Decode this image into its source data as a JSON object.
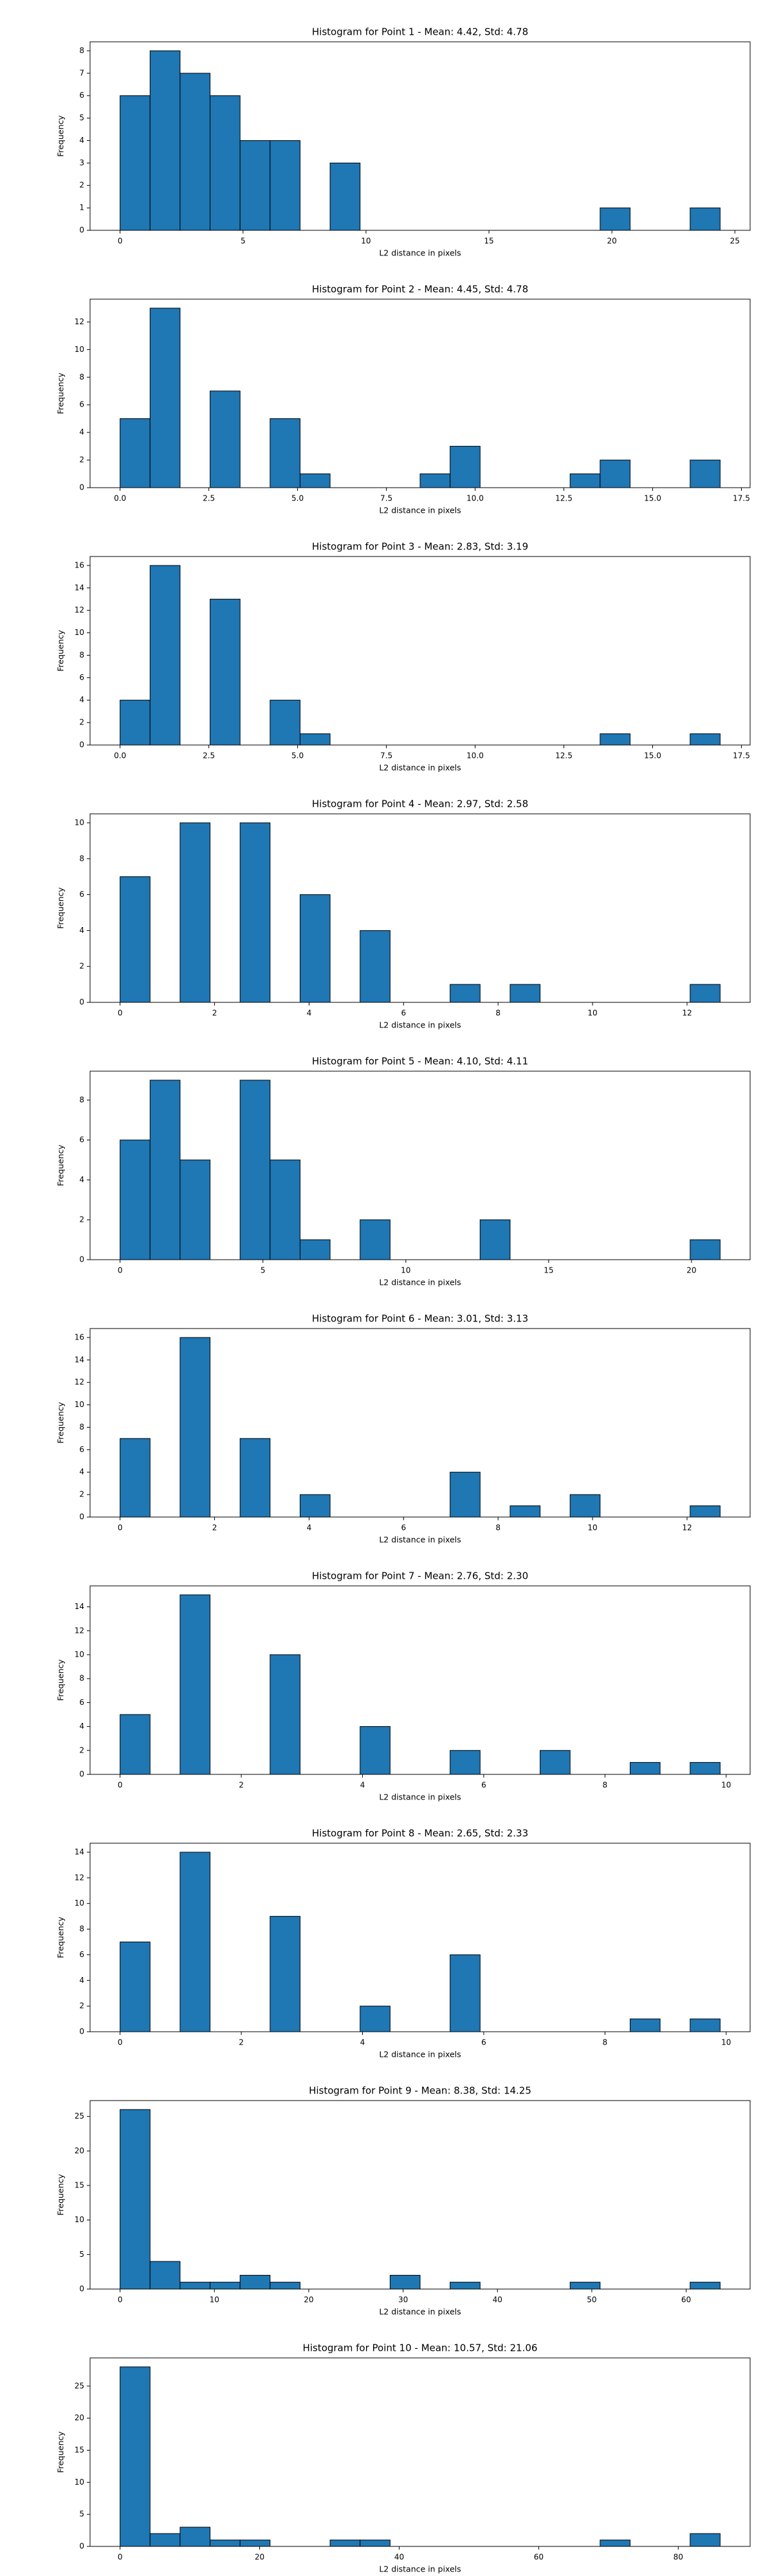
{
  "chart_data": [
    {
      "type": "histogram",
      "title": "Histogram for Point 1 - Mean: 4.42, Std: 4.78",
      "x_label": "L2 distance in pixels",
      "y_label": "Frequency",
      "color": "#1f77b4",
      "bins": [
        0,
        1.22,
        2.44,
        3.66,
        4.88,
        6.1,
        7.32,
        8.54,
        9.76,
        10.98,
        12.2,
        13.42,
        14.64,
        15.86,
        17.08,
        18.3,
        19.52,
        20.74,
        21.96,
        23.18,
        24.4
      ],
      "values": [
        6,
        8,
        7,
        6,
        4,
        4,
        0,
        3,
        0,
        0,
        0,
        0,
        0,
        0,
        0,
        0,
        1,
        0,
        0,
        1
      ],
      "xlim": [
        -1.22,
        25.62
      ],
      "xticks": [
        0,
        5,
        10,
        15,
        20,
        25
      ],
      "ylim": [
        0,
        8.4
      ],
      "yticks": [
        0,
        1,
        2,
        3,
        4,
        5,
        6,
        7,
        8
      ]
    },
    {
      "type": "histogram",
      "title": "Histogram for Point 2 - Mean: 4.45, Std: 4.78",
      "x_label": "L2 distance in pixels",
      "y_label": "Frequency",
      "color": "#1f77b4",
      "bins": [
        0,
        0.845,
        1.69,
        2.535,
        3.38,
        4.225,
        5.07,
        5.915,
        6.76,
        7.605,
        8.45,
        9.295,
        10.14,
        10.985,
        11.83,
        12.675,
        13.52,
        14.365,
        15.21,
        16.055,
        16.9
      ],
      "values": [
        5,
        13,
        0,
        7,
        0,
        5,
        1,
        0,
        0,
        0,
        1,
        3,
        0,
        0,
        0,
        1,
        2,
        0,
        0,
        2
      ],
      "xlim": [
        -0.845,
        17.745
      ],
      "xticks": [
        {
          "value": 0,
          "label": "0.0"
        },
        {
          "value": 2.5,
          "label": "2.5"
        },
        {
          "value": 5,
          "label": "5.0"
        },
        {
          "value": 7.5,
          "label": "7.5"
        },
        {
          "value": 10,
          "label": "10.0"
        },
        {
          "value": 12.5,
          "label": "12.5"
        },
        {
          "value": 15,
          "label": "15.0"
        },
        {
          "value": 17.5,
          "label": "17.5"
        }
      ],
      "ylim": [
        0,
        13.65
      ],
      "yticks": [
        0,
        2,
        4,
        6,
        8,
        10,
        12
      ]
    },
    {
      "type": "histogram",
      "title": "Histogram for Point 3 - Mean: 2.83, Std: 3.19",
      "x_label": "L2 distance in pixels",
      "y_label": "Frequency",
      "color": "#1f77b4",
      "bins": [
        0,
        0.845,
        1.69,
        2.535,
        3.38,
        4.225,
        5.07,
        5.915,
        6.76,
        7.605,
        8.45,
        9.295,
        10.14,
        10.985,
        11.83,
        12.675,
        13.52,
        14.365,
        15.21,
        16.055,
        16.9
      ],
      "values": [
        4,
        16,
        0,
        13,
        0,
        4,
        1,
        0,
        0,
        0,
        0,
        0,
        0,
        0,
        0,
        0,
        1,
        0,
        0,
        1
      ],
      "xlim": [
        -0.845,
        17.745
      ],
      "xticks": [
        {
          "value": 0,
          "label": "0.0"
        },
        {
          "value": 2.5,
          "label": "2.5"
        },
        {
          "value": 5,
          "label": "5.0"
        },
        {
          "value": 7.5,
          "label": "7.5"
        },
        {
          "value": 10,
          "label": "10.0"
        },
        {
          "value": 12.5,
          "label": "12.5"
        },
        {
          "value": 15,
          "label": "15.0"
        },
        {
          "value": 17.5,
          "label": "17.5"
        }
      ],
      "ylim": [
        0,
        16.8
      ],
      "yticks": [
        0,
        2,
        4,
        6,
        8,
        10,
        12,
        14,
        16
      ]
    },
    {
      "type": "histogram",
      "title": "Histogram for Point 4 - Mean: 2.97, Std: 2.58",
      "x_label": "L2 distance in pixels",
      "y_label": "Frequency",
      "color": "#1f77b4",
      "bins": [
        0,
        0.635,
        1.27,
        1.905,
        2.54,
        3.175,
        3.81,
        4.445,
        5.08,
        5.715,
        6.35,
        6.985,
        7.62,
        8.255,
        8.89,
        9.525,
        10.16,
        10.795,
        11.43,
        12.065,
        12.7
      ],
      "values": [
        7,
        0,
        10,
        0,
        10,
        0,
        6,
        0,
        4,
        0,
        0,
        1,
        0,
        1,
        0,
        0,
        0,
        0,
        0,
        1
      ],
      "xlim": [
        -0.635,
        13.335
      ],
      "xticks": [
        0,
        2,
        4,
        6,
        8,
        10,
        12
      ],
      "ylim": [
        0,
        10.5
      ],
      "yticks": [
        0,
        2,
        4,
        6,
        8,
        10
      ]
    },
    {
      "type": "histogram",
      "title": "Histogram for Point 5 - Mean: 4.10, Std: 4.11",
      "x_label": "L2 distance in pixels",
      "y_label": "Frequency",
      "color": "#1f77b4",
      "bins": [
        0,
        1.05,
        2.1,
        3.15,
        4.2,
        5.25,
        6.3,
        7.35,
        8.4,
        9.45,
        10.5,
        11.55,
        12.6,
        13.65,
        14.7,
        15.75,
        16.8,
        17.85,
        18.9,
        19.95,
        21
      ],
      "values": [
        6,
        9,
        5,
        0,
        9,
        5,
        1,
        0,
        2,
        0,
        0,
        0,
        2,
        0,
        0,
        0,
        0,
        0,
        0,
        1
      ],
      "xlim": [
        -1.05,
        22.05
      ],
      "xticks": [
        0,
        5,
        10,
        15,
        20
      ],
      "ylim": [
        0,
        9.45
      ],
      "yticks": [
        0,
        2,
        4,
        6,
        8
      ]
    },
    {
      "type": "histogram",
      "title": "Histogram for Point 6 - Mean: 3.01, Std: 3.13",
      "x_label": "L2 distance in pixels",
      "y_label": "Frequency",
      "color": "#1f77b4",
      "bins": [
        0,
        0.635,
        1.27,
        1.905,
        2.54,
        3.175,
        3.81,
        4.445,
        5.08,
        5.715,
        6.35,
        6.985,
        7.62,
        8.255,
        8.89,
        9.525,
        10.16,
        10.795,
        11.43,
        12.065,
        12.7
      ],
      "values": [
        7,
        0,
        16,
        0,
        7,
        0,
        2,
        0,
        0,
        0,
        0,
        4,
        0,
        1,
        0,
        2,
        0,
        0,
        0,
        1
      ],
      "xlim": [
        -0.635,
        13.335
      ],
      "xticks": [
        0,
        2,
        4,
        6,
        8,
        10,
        12
      ],
      "ylim": [
        0,
        16.8
      ],
      "yticks": [
        0,
        2,
        4,
        6,
        8,
        10,
        12,
        14,
        16
      ]
    },
    {
      "type": "histogram",
      "title": "Histogram for Point 7 - Mean: 2.76, Std: 2.30",
      "x_label": "L2 distance in pixels",
      "y_label": "Frequency",
      "color": "#1f77b4",
      "bins": [
        0,
        0.495,
        0.99,
        1.485,
        1.98,
        2.475,
        2.97,
        3.465,
        3.96,
        4.455,
        4.95,
        5.445,
        5.94,
        6.435,
        6.93,
        7.425,
        7.92,
        8.415,
        8.91,
        9.405,
        9.9
      ],
      "values": [
        5,
        0,
        15,
        0,
        0,
        10,
        0,
        0,
        4,
        0,
        0,
        2,
        0,
        0,
        2,
        0,
        0,
        1,
        0,
        1
      ],
      "xlim": [
        -0.495,
        10.395
      ],
      "xticks": [
        0,
        2,
        4,
        6,
        8,
        10
      ],
      "ylim": [
        0,
        15.75
      ],
      "yticks": [
        0,
        2,
        4,
        6,
        8,
        10,
        12,
        14
      ]
    },
    {
      "type": "histogram",
      "title": "Histogram for Point 8 - Mean: 2.65, Std: 2.33",
      "x_label": "L2 distance in pixels",
      "y_label": "Frequency",
      "color": "#1f77b4",
      "bins": [
        0,
        0.495,
        0.99,
        1.485,
        1.98,
        2.475,
        2.97,
        3.465,
        3.96,
        4.455,
        4.95,
        5.445,
        5.94,
        6.435,
        6.93,
        7.425,
        7.92,
        8.415,
        8.91,
        9.405,
        9.9
      ],
      "values": [
        7,
        0,
        14,
        0,
        0,
        9,
        0,
        0,
        2,
        0,
        0,
        6,
        0,
        0,
        0,
        0,
        0,
        1,
        0,
        1
      ],
      "xlim": [
        -0.495,
        10.395
      ],
      "xticks": [
        0,
        2,
        4,
        6,
        8,
        10
      ],
      "ylim": [
        0,
        14.7
      ],
      "yticks": [
        0,
        2,
        4,
        6,
        8,
        10,
        12,
        14
      ]
    },
    {
      "type": "histogram",
      "title": "Histogram for Point 9 - Mean: 8.38, Std: 14.25",
      "x_label": "L2 distance in pixels",
      "y_label": "Frequency",
      "color": "#1f77b4",
      "bins": [
        0,
        3.18,
        6.36,
        9.54,
        12.72,
        15.9,
        19.08,
        22.26,
        25.44,
        28.62,
        31.8,
        34.98,
        38.16,
        41.34,
        44.52,
        47.7,
        50.88,
        54.06,
        57.24,
        60.42,
        63.6
      ],
      "values": [
        26,
        4,
        1,
        1,
        2,
        1,
        0,
        0,
        0,
        2,
        0,
        1,
        0,
        0,
        0,
        1,
        0,
        0,
        0,
        1
      ],
      "xlim": [
        -3.18,
        66.78
      ],
      "xticks": [
        0,
        10,
        20,
        30,
        40,
        50,
        60
      ],
      "ylim": [
        0,
        27.3
      ],
      "yticks": [
        0,
        5,
        10,
        15,
        20,
        25
      ]
    },
    {
      "type": "histogram",
      "title": "Histogram for Point 10 - Mean: 10.57, Std: 21.06",
      "x_label": "L2 distance in pixels",
      "y_label": "Frequency",
      "color": "#1f77b4",
      "bins": [
        0,
        4.3,
        8.6,
        12.9,
        17.2,
        21.5,
        25.8,
        30.1,
        34.4,
        38.7,
        43,
        47.3,
        51.6,
        55.9,
        60.2,
        64.5,
        68.8,
        73.1,
        77.4,
        81.7,
        86
      ],
      "values": [
        28,
        2,
        3,
        1,
        1,
        0,
        0,
        1,
        1,
        0,
        0,
        0,
        0,
        0,
        0,
        0,
        1,
        0,
        0,
        2
      ],
      "xlim": [
        -4.3,
        90.3
      ],
      "xticks": [
        0,
        20,
        40,
        60,
        80
      ],
      "ylim": [
        0,
        29.4
      ],
      "yticks": [
        0,
        5,
        10,
        15,
        20,
        25
      ]
    }
  ]
}
